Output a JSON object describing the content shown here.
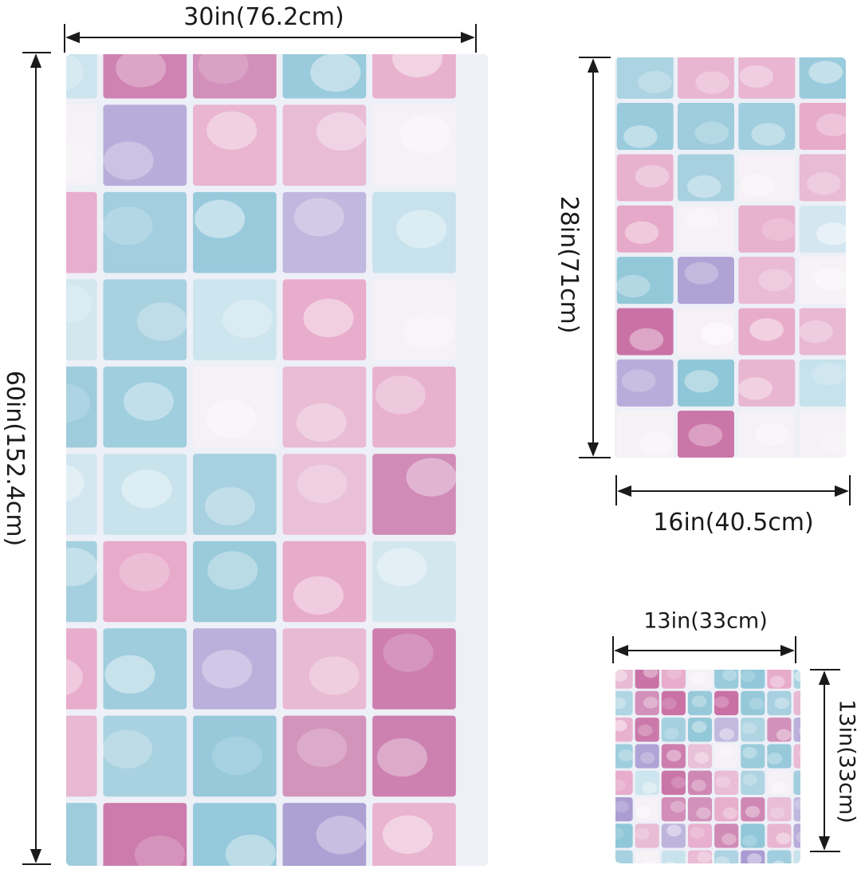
{
  "products": {
    "bath_towel": {
      "width_label": "30in(76.2cm)",
      "height_label": "60in(152.4cm)"
    },
    "hand_towel": {
      "height_label": "28in(71cm)",
      "width_label": "16in(40.5cm)"
    },
    "washcloth": {
      "width_label": "13in(33cm)",
      "height_label": "13in(33cm)"
    }
  },
  "palette": {
    "pink": "#e7a9c9",
    "magenta": "#c76aa1",
    "blue": "#8fc6d8",
    "light_blue": "#c6e2ec",
    "lavender": "#a99bd1",
    "white": "#f7f1f6",
    "grout": "#eef0f7",
    "arrow": "#1a1a1a"
  }
}
